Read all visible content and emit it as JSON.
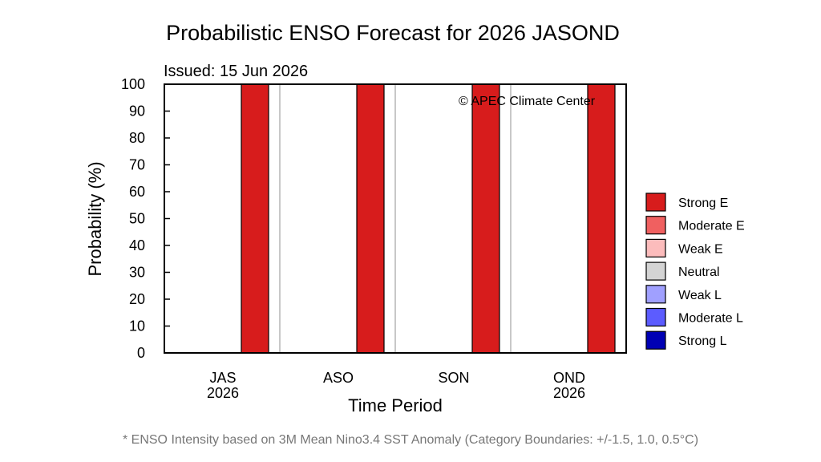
{
  "chart_data": {
    "type": "bar",
    "title": "Probabilistic ENSO Forecast for 2026 JASOND",
    "subtitle": "Issued: 15 Jun 2026",
    "xlabel": "Time Period",
    "ylabel": "Probability (%)",
    "ylim": [
      0,
      100
    ],
    "yticks": [
      "0",
      "10",
      "20",
      "30",
      "40",
      "50",
      "60",
      "70",
      "80",
      "90",
      "100"
    ],
    "categories": [
      {
        "label": "JAS",
        "year": "2026"
      },
      {
        "label": "ASO",
        "year": ""
      },
      {
        "label": "SON",
        "year": ""
      },
      {
        "label": "OND",
        "year": "2026"
      }
    ],
    "series": [
      {
        "name": "Strong E",
        "color": "#d71c1c",
        "values": [
          100,
          100,
          100,
          100
        ]
      },
      {
        "name": "Moderate E",
        "color": "#f06060",
        "values": [
          0,
          0,
          0,
          0
        ]
      },
      {
        "name": "Weak E",
        "color": "#fcbcbc",
        "values": [
          0,
          0,
          0,
          0
        ]
      },
      {
        "name": "Neutral",
        "color": "#d4d4d4",
        "values": [
          0,
          0,
          0,
          0
        ]
      },
      {
        "name": "Weak L",
        "color": "#a0a0ff",
        "values": [
          0,
          0,
          0,
          0
        ]
      },
      {
        "name": "Moderate L",
        "color": "#5c5cff",
        "values": [
          0,
          0,
          0,
          0
        ]
      },
      {
        "name": "Strong L",
        "color": "#0000b4",
        "values": [
          0,
          0,
          0,
          0
        ]
      }
    ],
    "legend_position": "right",
    "grid": false,
    "copyright": "© APEC Climate Center",
    "footnote": "* ENSO Intensity based on 3M Mean Nino3.4 SST Anomaly (Category Boundaries: +/-1.5, 1.0, 0.5°C)",
    "divider_color": "#c8c8c8"
  }
}
